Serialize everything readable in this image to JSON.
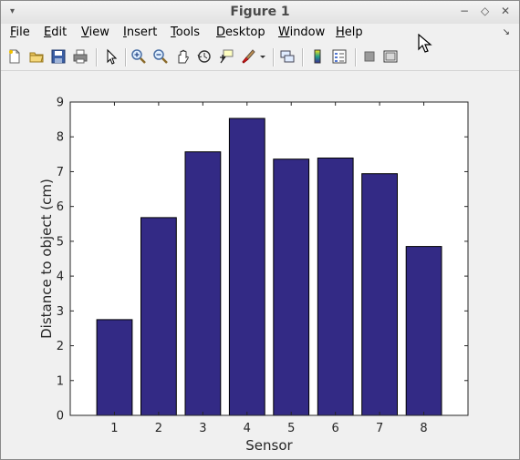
{
  "window": {
    "title": "Figure 1",
    "controls": {
      "menu": "▾",
      "minimize": "−",
      "maximize": "◇",
      "close": "✕"
    }
  },
  "menubar": {
    "items": [
      {
        "label": "File",
        "mnemonic": "F"
      },
      {
        "label": "Edit",
        "mnemonic": "E"
      },
      {
        "label": "View",
        "mnemonic": "V"
      },
      {
        "label": "Insert",
        "mnemonic": "I"
      },
      {
        "label": "Tools",
        "mnemonic": "T"
      },
      {
        "label": "Desktop",
        "mnemonic": "D"
      },
      {
        "label": "Window",
        "mnemonic": "W"
      },
      {
        "label": "Help",
        "mnemonic": "H"
      }
    ],
    "dock_icon": "↘"
  },
  "toolbar": {
    "icons": [
      "new-figure-icon",
      "open-file-icon",
      "save-icon",
      "print-icon",
      "select-arrow-icon",
      "zoom-in-icon",
      "zoom-out-icon",
      "pan-icon",
      "rotate-3d-icon",
      "data-cursor-icon",
      "brush-icon",
      "brush-dropdown-icon",
      "link-plot-icon",
      "colorbar-icon",
      "legend-icon",
      "hide-plot-tools-icon",
      "show-plot-tools-icon"
    ]
  },
  "chart_data": {
    "type": "bar",
    "categories": [
      "1",
      "2",
      "3",
      "4",
      "5",
      "6",
      "7",
      "8"
    ],
    "values": [
      2.75,
      5.68,
      7.57,
      8.53,
      7.36,
      7.39,
      6.94,
      4.85
    ],
    "xlabel": "Sensor",
    "ylabel": "Distance to object (cm)",
    "ylim": [
      0,
      9
    ],
    "yticks": [
      "0",
      "1",
      "2",
      "3",
      "4",
      "5",
      "6",
      "7",
      "8",
      "9"
    ],
    "bar_color": "#332a85",
    "grid": false
  }
}
